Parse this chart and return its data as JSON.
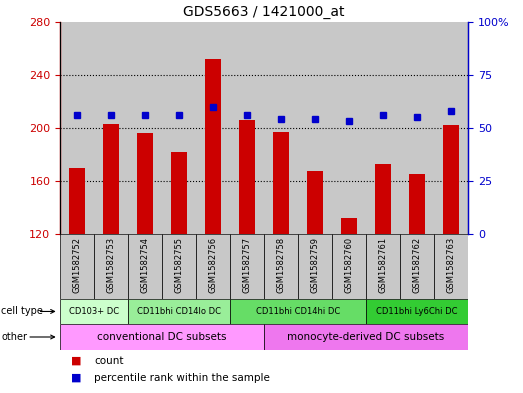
{
  "title": "GDS5663 / 1421000_at",
  "samples": [
    "GSM1582752",
    "GSM1582753",
    "GSM1582754",
    "GSM1582755",
    "GSM1582756",
    "GSM1582757",
    "GSM1582758",
    "GSM1582759",
    "GSM1582760",
    "GSM1582761",
    "GSM1582762",
    "GSM1582763"
  ],
  "counts": [
    170,
    203,
    196,
    182,
    252,
    206,
    197,
    167,
    132,
    173,
    165,
    202
  ],
  "percentiles": [
    56,
    56,
    56,
    56,
    60,
    56,
    54,
    54,
    53,
    56,
    55,
    58
  ],
  "ylim_left": [
    120,
    280
  ],
  "ylim_right": [
    0,
    100
  ],
  "yticks_left": [
    120,
    160,
    200,
    240,
    280
  ],
  "yticks_right": [
    0,
    25,
    50,
    75,
    100
  ],
  "bar_color": "#cc0000",
  "dot_color": "#0000cc",
  "col_bg_color": "#c8c8c8",
  "cell_type_groups": [
    {
      "label": "CD103+ DC",
      "start": 0,
      "end": 2,
      "color": "#ccffcc"
    },
    {
      "label": "CD11bhi CD14lo DC",
      "start": 2,
      "end": 5,
      "color": "#99ee99"
    },
    {
      "label": "CD11bhi CD14hi DC",
      "start": 5,
      "end": 9,
      "color": "#66dd66"
    },
    {
      "label": "CD11bhi Ly6Chi DC",
      "start": 9,
      "end": 12,
      "color": "#33cc33"
    }
  ],
  "other_groups": [
    {
      "label": "conventional DC subsets",
      "start": 0,
      "end": 6,
      "color": "#ff99ff"
    },
    {
      "label": "monocyte-derived DC subsets",
      "start": 6,
      "end": 12,
      "color": "#ee77ee"
    }
  ],
  "background_color": "#ffffff"
}
